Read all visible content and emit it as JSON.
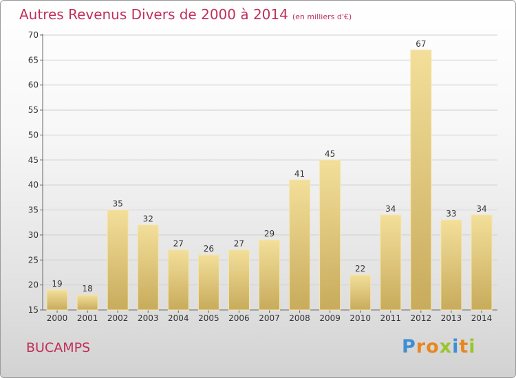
{
  "title": "Autres Revenus Divers de 2000 à 2014",
  "unit": "(en milliers d'€)",
  "commune": "BUCAMPS",
  "logo": "Proxiti",
  "colors": {
    "bar_top": "#f3df9a",
    "bar_bottom": "#c8ab5c",
    "title": "#c0305a",
    "grid": "#cfcfcf"
  },
  "chart_data": {
    "type": "bar",
    "categories": [
      "2000",
      "2001",
      "2002",
      "2003",
      "2004",
      "2005",
      "2006",
      "2007",
      "2008",
      "2009",
      "2010",
      "2011",
      "2012",
      "2013",
      "2014"
    ],
    "values": [
      19,
      18,
      35,
      32,
      27,
      26,
      27,
      29,
      41,
      45,
      22,
      34,
      67,
      33,
      34
    ],
    "ylim": [
      15,
      70
    ],
    "yticks": [
      15,
      20,
      25,
      30,
      35,
      40,
      45,
      50,
      55,
      60,
      65,
      70
    ],
    "grid": true,
    "data_labels": true
  }
}
